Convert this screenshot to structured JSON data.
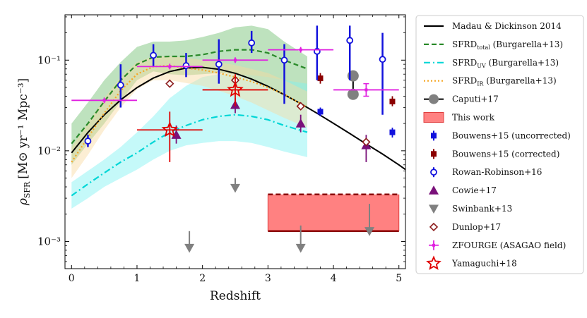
{
  "chart_data": {
    "type": "scatter",
    "xlabel": "Redshift",
    "ylabel_main": "ρ",
    "ylabel_sub": "SFR",
    "ylabel_units": "[M⊙ yr⁻¹ Mpc⁻³]",
    "xlim": [
      -0.1,
      5.1
    ],
    "ylim_log10": [
      -3.3,
      -0.5
    ],
    "xticks": [
      0,
      1,
      2,
      3,
      4,
      5
    ],
    "yticks": [
      {
        "value": 0.001,
        "label": "10⁻³"
      },
      {
        "value": 0.01,
        "label": "10⁻²"
      },
      {
        "value": 0.1,
        "label": "10⁻¹"
      }
    ],
    "lines": [
      {
        "name": "madau",
        "label": "Madau & Dickinson 2014",
        "color": "#000000",
        "style": "solid",
        "x": [
          0,
          0.25,
          0.5,
          0.75,
          1,
          1.25,
          1.5,
          1.75,
          2,
          2.25,
          2.5,
          2.75,
          3,
          3.25,
          3.5,
          3.75,
          4,
          4.25,
          4.5,
          4.75,
          5,
          5.1
        ],
        "y": [
          0.0095,
          0.0159,
          0.0249,
          0.0364,
          0.0498,
          0.0634,
          0.0749,
          0.0818,
          0.0833,
          0.0794,
          0.0716,
          0.0617,
          0.0514,
          0.0416,
          0.0331,
          0.0259,
          0.0201,
          0.0155,
          0.0119,
          0.0092,
          0.007,
          0.0062
        ]
      },
      {
        "name": "sfrd-total",
        "label": "SFRDtotal (Burgarella+13)",
        "label_main": "SFRD",
        "label_sub": "total",
        "label_tail": " (Burgarella+13)",
        "color": "#2a8a2a",
        "style": "dash",
        "x": [
          0,
          0.25,
          0.5,
          0.75,
          1,
          1.25,
          1.5,
          1.75,
          2,
          2.25,
          2.5,
          2.75,
          3,
          3.25,
          3.6
        ],
        "y": [
          0.012,
          0.02,
          0.035,
          0.06,
          0.09,
          0.108,
          0.11,
          0.11,
          0.115,
          0.125,
          0.13,
          0.13,
          0.12,
          0.1,
          0.08
        ],
        "band_lo": [
          0.007,
          0.012,
          0.02,
          0.035,
          0.06,
          0.075,
          0.07,
          0.068,
          0.07,
          0.072,
          0.07,
          0.062,
          0.05,
          0.04,
          0.03
        ],
        "band_hi": [
          0.02,
          0.034,
          0.06,
          0.095,
          0.14,
          0.16,
          0.16,
          0.165,
          0.18,
          0.2,
          0.23,
          0.24,
          0.22,
          0.16,
          0.11
        ],
        "band_color": "#6fbf6f"
      },
      {
        "name": "sfrd-uv",
        "label": "SFRDUV (Burgarella+13)",
        "label_main": "SFRD",
        "label_sub": "UV",
        "label_tail": " (Burgarella+13)",
        "color": "#00d6d6",
        "style": "dashdot",
        "x": [
          0,
          0.25,
          0.5,
          0.75,
          1,
          1.25,
          1.5,
          1.75,
          2,
          2.25,
          2.5,
          2.75,
          3,
          3.25,
          3.6
        ],
        "y": [
          0.0032,
          0.0043,
          0.0057,
          0.0075,
          0.0095,
          0.0125,
          0.016,
          0.019,
          0.022,
          0.024,
          0.025,
          0.024,
          0.022,
          0.019,
          0.016
        ],
        "band_lo": [
          0.0023,
          0.003,
          0.004,
          0.005,
          0.0062,
          0.008,
          0.01,
          0.0115,
          0.0122,
          0.0128,
          0.0128,
          0.0122,
          0.011,
          0.0098,
          0.0085
        ],
        "band_hi": [
          0.0045,
          0.006,
          0.008,
          0.011,
          0.016,
          0.024,
          0.038,
          0.052,
          0.065,
          0.07,
          0.07,
          0.068,
          0.065,
          0.06,
          0.055
        ],
        "band_color": "#7ff2f2"
      },
      {
        "name": "sfrd-ir",
        "label": "SFRDIR (Burgarella+13)",
        "label_main": "SFRD",
        "label_sub": "IR",
        "label_tail": " (Burgarella+13)",
        "color": "#f5a623",
        "style": "dot",
        "x": [
          0,
          0.25,
          0.5,
          0.75,
          1,
          1.25,
          1.5,
          1.75,
          2,
          2.25,
          2.5,
          2.75,
          3,
          3.25,
          3.6
        ],
        "y": [
          0.0075,
          0.014,
          0.026,
          0.046,
          0.07,
          0.085,
          0.087,
          0.082,
          0.078,
          0.072,
          0.065,
          0.058,
          0.05,
          0.042,
          0.03
        ],
        "band_lo": [
          0.005,
          0.009,
          0.017,
          0.03,
          0.048,
          0.06,
          0.06,
          0.056,
          0.052,
          0.046,
          0.04,
          0.034,
          0.028,
          0.023,
          0.018
        ],
        "band_hi": [
          0.011,
          0.02,
          0.038,
          0.065,
          0.095,
          0.11,
          0.11,
          0.106,
          0.1,
          0.095,
          0.088,
          0.08,
          0.072,
          0.06,
          0.045
        ],
        "band_color": "#f8d9a0"
      }
    ],
    "series": [
      {
        "name": "caputi",
        "label": "Caputi+17",
        "marker": "circle-filled",
        "color": "#808080",
        "size": 8,
        "points": [
          {
            "x": 4.3,
            "y": 0.067
          },
          {
            "x": 4.3,
            "y": 0.042
          }
        ],
        "connect": true
      },
      {
        "name": "bouwens-uncorr",
        "label": "Bouwens+15 (uncorrected)",
        "marker": "square",
        "color": "#1212dd",
        "size": 4,
        "points": [
          {
            "x": 3.8,
            "y": 0.027,
            "ylo": 0.024,
            "yhi": 0.03
          },
          {
            "x": 4.9,
            "y": 0.016,
            "ylo": 0.014,
            "yhi": 0.018
          }
        ]
      },
      {
        "name": "bouwens-corr",
        "label": "Bouwens+15 (corrected)",
        "marker": "square",
        "color": "#8b0000",
        "size": 4,
        "points": [
          {
            "x": 3.8,
            "y": 0.063,
            "ylo": 0.055,
            "yhi": 0.072
          },
          {
            "x": 4.9,
            "y": 0.035,
            "ylo": 0.031,
            "yhi": 0.04
          }
        ]
      },
      {
        "name": "rowan-robinson",
        "label": "Rowan-Robinson+16",
        "marker": "circle-open",
        "color": "#1212dd",
        "size": 4,
        "points": [
          {
            "x": 0.25,
            "y": 0.0128,
            "ylo": 0.011,
            "yhi": 0.015
          },
          {
            "x": 0.75,
            "y": 0.053,
            "ylo": 0.03,
            "yhi": 0.09
          },
          {
            "x": 1.25,
            "y": 0.113,
            "ylo": 0.085,
            "yhi": 0.15
          },
          {
            "x": 1.75,
            "y": 0.087,
            "ylo": 0.065,
            "yhi": 0.12
          },
          {
            "x": 2.25,
            "y": 0.09,
            "ylo": 0.055,
            "yhi": 0.17
          },
          {
            "x": 2.75,
            "y": 0.155,
            "ylo": 0.12,
            "yhi": 0.21
          },
          {
            "x": 3.25,
            "y": 0.1,
            "ylo": 0.033,
            "yhi": 0.15
          },
          {
            "x": 3.75,
            "y": 0.125,
            "ylo": 0.06,
            "yhi": 0.24
          },
          {
            "x": 4.25,
            "y": 0.165,
            "ylo": 0.06,
            "yhi": 0.24
          },
          {
            "x": 4.75,
            "y": 0.102,
            "ylo": 0.025,
            "yhi": 0.2
          }
        ]
      },
      {
        "name": "cowie",
        "label": "Cowie+17",
        "marker": "triangle-up",
        "color": "#7a117a",
        "size": 7,
        "points": [
          {
            "x": 1.6,
            "y": 0.015,
            "ylo": 0.012,
            "yhi": 0.019
          },
          {
            "x": 2.5,
            "y": 0.032,
            "ylo": 0.026,
            "yhi": 0.038
          },
          {
            "x": 3.5,
            "y": 0.02,
            "ylo": 0.016,
            "yhi": 0.025
          },
          {
            "x": 4.5,
            "y": 0.0115,
            "ylo": 0.0075,
            "yhi": 0.015
          }
        ]
      },
      {
        "name": "swinbank",
        "label": "Swinbank+13",
        "marker": "triangle-down",
        "color": "#808080",
        "size": 7,
        "upper_limits": true,
        "points": [
          {
            "x": 1.8,
            "y": 0.00085,
            "ytop": 0.0013
          },
          {
            "x": 2.5,
            "y": 0.0039,
            "ytop": 0.005
          },
          {
            "x": 3.5,
            "y": 0.00085,
            "ytop": 0.0015
          },
          {
            "x": 4.55,
            "y": 0.0013,
            "ytop": 0.0026
          }
        ]
      },
      {
        "name": "dunlop",
        "label": "Dunlop+17",
        "marker": "diamond-open",
        "color": "#8b1a1a",
        "size": 5,
        "points": [
          {
            "x": 1.5,
            "y": 0.055
          },
          {
            "x": 2.5,
            "y": 0.06
          },
          {
            "x": 3.5,
            "y": 0.031
          },
          {
            "x": 4.5,
            "y": 0.0125
          }
        ]
      },
      {
        "name": "zfourge",
        "label": "ZFOURGE (ASAGAO field)",
        "marker": "plus",
        "color": "#e020e0",
        "size": 4,
        "points": [
          {
            "x": 0.5,
            "y": 0.036,
            "xlo": 0.0,
            "xhi": 1.0
          },
          {
            "x": 1.5,
            "y": 0.085,
            "xlo": 1.0,
            "xhi": 2.0
          },
          {
            "x": 2.5,
            "y": 0.1,
            "xlo": 2.0,
            "xhi": 3.0
          },
          {
            "x": 3.5,
            "y": 0.13,
            "xlo": 3.0,
            "xhi": 4.0
          },
          {
            "x": 4.5,
            "y": 0.047,
            "xlo": 4.0,
            "xhi": 5.0,
            "ylo": 0.04,
            "yhi": 0.055
          }
        ]
      },
      {
        "name": "yamaguchi",
        "label": "Yamaguchi+18",
        "marker": "star-open",
        "color": "#e00000",
        "size": 10,
        "points": [
          {
            "x": 1.5,
            "y": 0.017,
            "xlo": 1.0,
            "xhi": 2.0,
            "ylo": 0.0075,
            "yhi": 0.027
          },
          {
            "x": 2.5,
            "y": 0.047,
            "xlo": 2.0,
            "xhi": 3.0,
            "ylo": 0.031,
            "yhi": 0.07
          }
        ]
      }
    ],
    "box": {
      "name": "this-work",
      "label": "This work",
      "x0": 3.0,
      "x1": 5.0,
      "ylo": 0.0013,
      "yhi": 0.0033,
      "fill": "#ff6b6b",
      "edge": "#8b0000"
    }
  }
}
